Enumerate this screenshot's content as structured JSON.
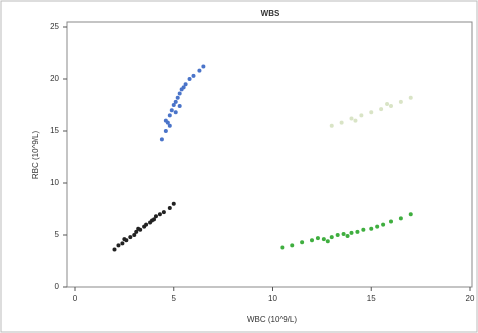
{
  "chart_data": {
    "type": "scatter",
    "title": "WBS",
    "xlabel": "WBC (10^9/L)",
    "ylabel": "RBC (10^9/L)",
    "xlim": [
      0,
      20
    ],
    "xticks": [
      0,
      5,
      10,
      15,
      20
    ],
    "ylim": [
      0,
      25
    ],
    "yticks": [
      0,
      5,
      10,
      15,
      20,
      25
    ],
    "series": [
      {
        "color": "#222222",
        "x": [
          2.0,
          2.2,
          2.4,
          2.6,
          2.8,
          3.0,
          3.1,
          3.3,
          3.5,
          3.6,
          3.8,
          4.0,
          4.1,
          4.3,
          4.5,
          4.8,
          5.0,
          2.5,
          3.2,
          3.9
        ],
        "y": [
          3.6,
          4.0,
          4.2,
          4.5,
          4.8,
          5.0,
          5.3,
          5.5,
          5.8,
          6.0,
          6.2,
          6.5,
          6.8,
          7.0,
          7.2,
          7.6,
          8.0,
          4.6,
          5.6,
          6.4
        ]
      },
      {
        "color": "#4a74c9",
        "x": [
          4.4,
          4.6,
          4.7,
          4.8,
          4.9,
          5.0,
          5.1,
          5.2,
          5.3,
          5.4,
          5.5,
          5.6,
          5.8,
          6.0,
          6.3,
          6.5,
          4.8,
          5.1,
          5.3,
          4.6
        ],
        "y": [
          14.2,
          15.0,
          15.8,
          16.5,
          17.0,
          17.5,
          17.8,
          18.2,
          18.6,
          19.0,
          19.2,
          19.5,
          20.0,
          20.3,
          20.8,
          21.2,
          15.5,
          16.8,
          17.4,
          16.0
        ]
      },
      {
        "color": "#3fae3f",
        "x": [
          10.5,
          11.0,
          11.5,
          12.0,
          12.3,
          12.6,
          13.0,
          13.3,
          13.6,
          14.0,
          14.3,
          14.6,
          15.0,
          15.3,
          15.6,
          16.0,
          16.5,
          17.0,
          12.8,
          13.8
        ],
        "y": [
          3.8,
          4.0,
          4.3,
          4.5,
          4.7,
          4.6,
          4.8,
          5.0,
          5.1,
          5.2,
          5.3,
          5.5,
          5.6,
          5.8,
          6.0,
          6.3,
          6.6,
          7.0,
          4.4,
          4.9
        ]
      },
      {
        "color": "#d9e4c6",
        "x": [
          13.0,
          13.5,
          14.0,
          14.5,
          15.0,
          15.5,
          16.0,
          16.5,
          17.0,
          14.2,
          15.8
        ],
        "y": [
          15.5,
          15.8,
          16.2,
          16.5,
          16.8,
          17.1,
          17.4,
          17.8,
          18.2,
          16.0,
          17.6
        ]
      }
    ]
  }
}
